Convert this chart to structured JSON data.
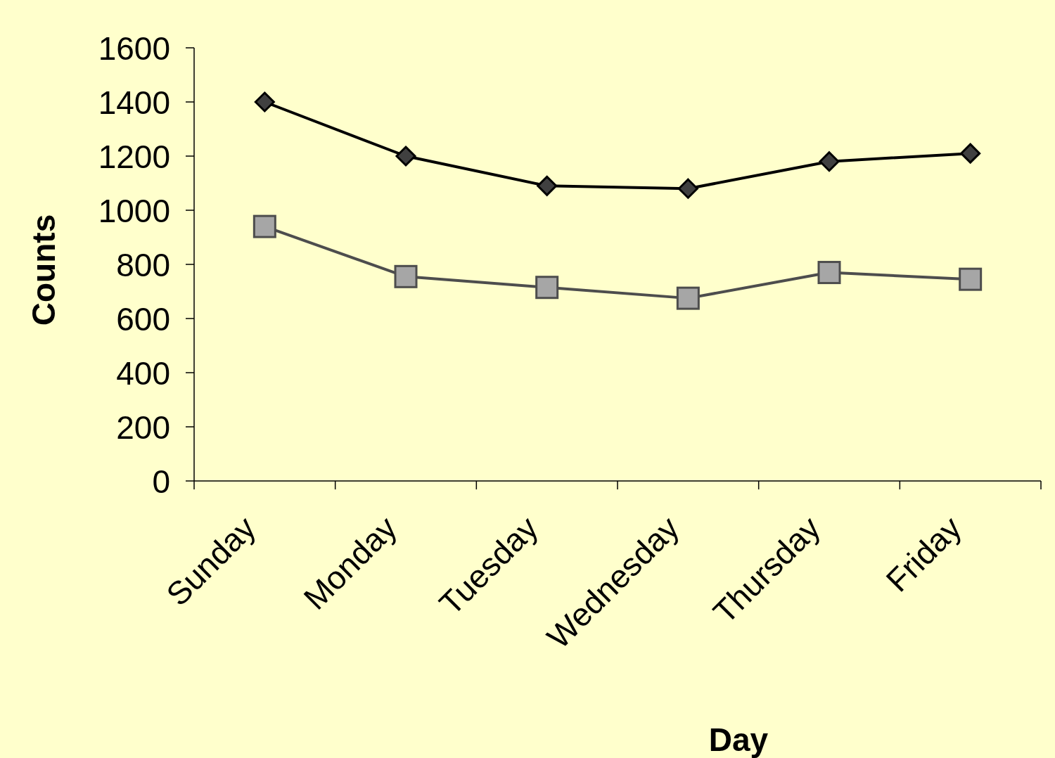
{
  "chart_data": {
    "type": "line",
    "xlabel": "Day",
    "ylabel": "Counts",
    "categories": [
      "Sunday",
      "Monday",
      "Tuesday",
      "Wednesday",
      "Thursday",
      "Friday"
    ],
    "series": [
      {
        "color": "#000000",
        "marker": "diamond",
        "values": [
          1400,
          1200,
          1090,
          1080,
          1180,
          1210
        ]
      },
      {
        "color": "#4d4d4d",
        "marker": "square",
        "values": [
          940,
          755,
          715,
          675,
          770,
          745
        ]
      }
    ],
    "ylim": [
      0,
      1600
    ],
    "yticks": [
      0,
      200,
      400,
      600,
      800,
      1000,
      1200,
      1400,
      1600
    ],
    "grid": false
  }
}
